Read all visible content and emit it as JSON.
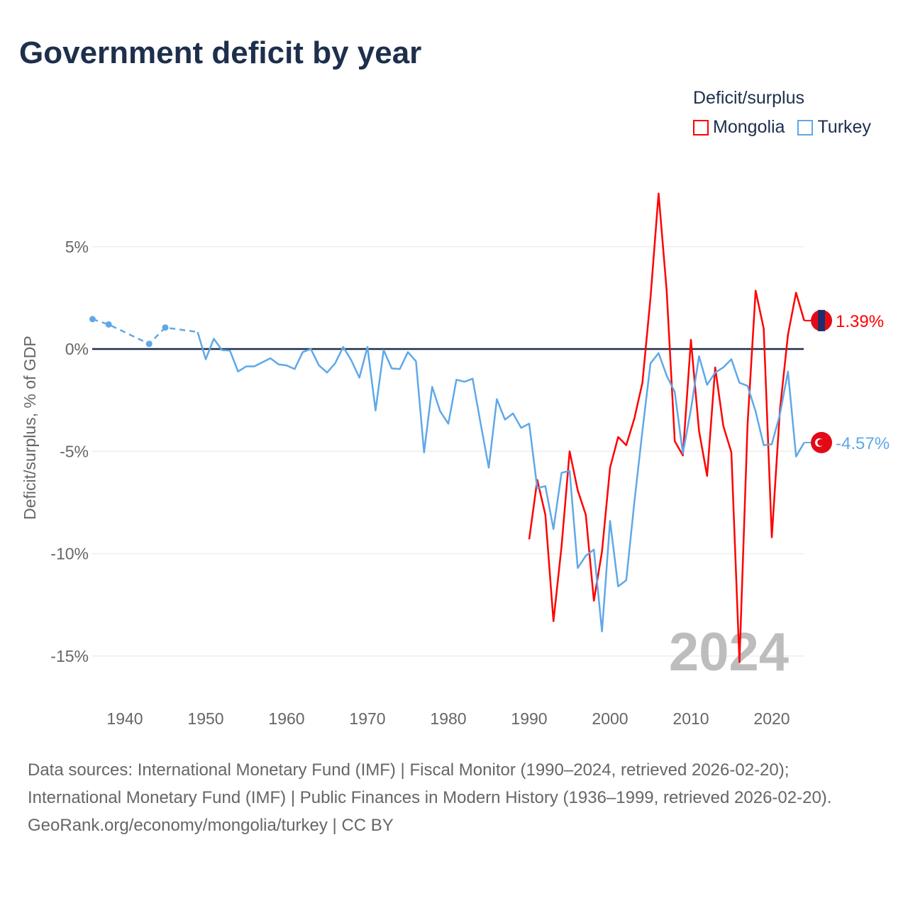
{
  "title": "Government deficit by year",
  "legend": {
    "title": "Deficit/surplus",
    "items": [
      {
        "name": "Mongolia",
        "color": "#ff0000"
      },
      {
        "name": "Turkey",
        "color": "#5fa8e8"
      }
    ]
  },
  "chart_data": {
    "type": "line",
    "title": "Government deficit by year",
    "xlabel": "",
    "ylabel": "Deficit/surplus, % of GDP",
    "xlim": [
      1936,
      2024
    ],
    "ylim": [
      -17,
      8
    ],
    "xticks": [
      1940,
      1950,
      1960,
      1970,
      1980,
      1990,
      2000,
      2010,
      2020
    ],
    "yticks": [
      5,
      0,
      -5,
      -10,
      -15
    ],
    "ytick_labels": [
      "5%",
      "0%",
      "-5%",
      "-10%",
      "-15%"
    ],
    "year_watermark": "2024",
    "series": [
      {
        "name": "Mongolia",
        "color": "#ff0000",
        "end_label": "1.39%",
        "x": [
          1990,
          1991,
          1992,
          1993,
          1994,
          1995,
          1996,
          1997,
          1998,
          1999,
          2000,
          2001,
          2002,
          2003,
          2004,
          2005,
          2006,
          2007,
          2008,
          2009,
          2010,
          2011,
          2012,
          2013,
          2014,
          2015,
          2016,
          2017,
          2018,
          2019,
          2020,
          2021,
          2022,
          2023,
          2024
        ],
        "y": [
          -9.3,
          -6.4,
          -8.1,
          -13.3,
          -9.65,
          -5.0,
          -6.9,
          -8.1,
          -12.3,
          -9.9,
          -5.8,
          -4.3,
          -4.7,
          -3.4,
          -1.65,
          2.5,
          7.6,
          2.85,
          -4.5,
          -5.2,
          0.45,
          -4.0,
          -6.2,
          -0.9,
          -3.75,
          -5.05,
          -15.3,
          -3.7,
          2.85,
          1.0,
          -9.2,
          -3.0,
          0.7,
          2.75,
          1.39
        ]
      },
      {
        "name": "Turkey",
        "color": "#5fa8e8",
        "end_label": "-4.57%",
        "sparse_x": [
          1936,
          1938,
          1943,
          1945,
          1949
        ],
        "sparse_y": [
          1.46,
          1.2,
          0.25,
          1.05,
          0.83
        ],
        "x": [
          1949,
          1950,
          1951,
          1952,
          1953,
          1954,
          1955,
          1956,
          1957,
          1958,
          1959,
          1960,
          1961,
          1962,
          1963,
          1964,
          1965,
          1966,
          1967,
          1968,
          1969,
          1970,
          1971,
          1972,
          1973,
          1974,
          1975,
          1976,
          1977,
          1978,
          1979,
          1980,
          1981,
          1982,
          1983,
          1984,
          1985,
          1986,
          1987,
          1988,
          1989,
          1990,
          1991,
          1992,
          1993,
          1994,
          1995,
          1996,
          1997,
          1998,
          1999,
          2000,
          2001,
          2002,
          2003,
          2004,
          2005,
          2006,
          2007,
          2008,
          2009,
          2010,
          2011,
          2012,
          2013,
          2014,
          2015,
          2016,
          2017,
          2018,
          2019,
          2020,
          2021,
          2022,
          2023,
          2024
        ],
        "y": [
          0.83,
          -0.5,
          0.5,
          -0.05,
          -0.08,
          -1.1,
          -0.85,
          -0.85,
          -0.65,
          -0.45,
          -0.75,
          -0.8,
          -0.98,
          -0.15,
          0.0,
          -0.8,
          -1.15,
          -0.7,
          0.1,
          -0.55,
          -1.4,
          0.1,
          -3.0,
          -0.05,
          -0.95,
          -0.98,
          -0.15,
          -0.6,
          -5.05,
          -1.85,
          -3.05,
          -3.65,
          -1.5,
          -1.6,
          -1.45,
          -3.65,
          -5.8,
          -2.45,
          -3.45,
          -3.15,
          -3.85,
          -3.65,
          -6.8,
          -6.7,
          -8.8,
          -6.05,
          -5.95,
          -10.7,
          -10.1,
          -9.8,
          -13.8,
          -8.4,
          -11.6,
          -11.3,
          -7.5,
          -4.0,
          -0.7,
          -0.2,
          -1.3,
          -2.1,
          -5.1,
          -2.95,
          -0.35,
          -1.75,
          -1.15,
          -0.9,
          -0.5,
          -1.65,
          -1.8,
          -3.05,
          -4.7,
          -4.65,
          -3.2,
          -1.1,
          -5.25,
          -4.57
        ]
      }
    ]
  },
  "footer": {
    "sources": "Data sources: International Monetary Fund (IMF) | Fiscal Monitor (1990–2024, retrieved 2026-02-20); International Monetary Fund (IMF) | Public Finances in Modern History (1936–1999, retrieved 2026-02-20).",
    "credit": "GeoRank.org/economy/mongolia/turkey | CC BY"
  }
}
